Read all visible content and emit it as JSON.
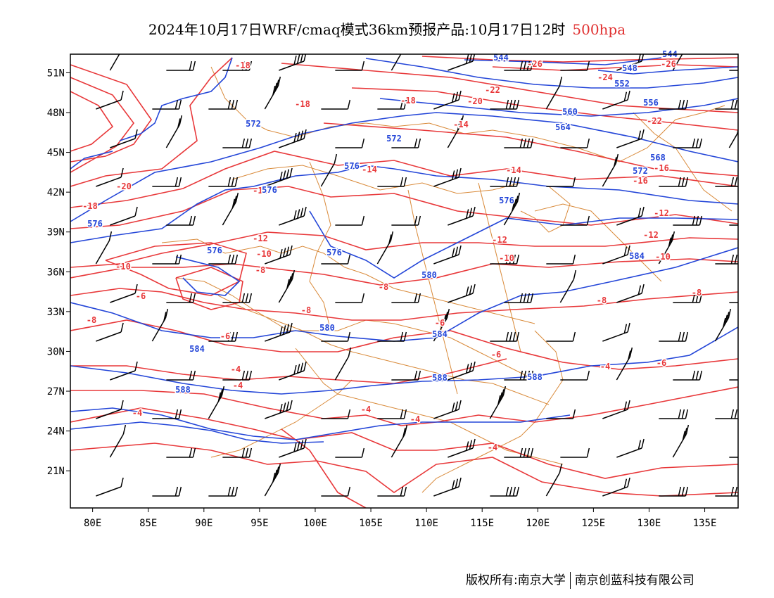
{
  "title": {
    "main": "2024年10月17日WRF/cmaq模式36km预报产品:10月17日12时",
    "level": "500hpa"
  },
  "colors": {
    "temperature": "#e8383a",
    "height": "#2446d8",
    "border": "#d98a3a",
    "wind": "#000000",
    "level_title": "#e03030"
  },
  "map": {
    "lon_range": [
      78,
      138
    ],
    "lat_range": [
      18.2,
      52.4
    ],
    "lon_ticks": [
      "80E",
      "85E",
      "90E",
      "95E",
      "100E",
      "105E",
      "110E",
      "115E",
      "120E",
      "125E",
      "130E",
      "135E"
    ],
    "lat_ticks": [
      "51N",
      "48N",
      "45N",
      "42N",
      "39N",
      "36N",
      "33N",
      "30N",
      "27N",
      "24N",
      "21N"
    ],
    "temperature_labels": [
      "-26",
      "-26",
      "-24",
      "-22",
      "-22",
      "-20",
      "-20",
      "-18",
      "-18",
      "-18",
      "-18",
      "-16",
      "-16",
      "-14",
      "-14",
      "-14",
      "-14",
      "-12",
      "-12",
      "-12",
      "-12",
      "-10",
      "-10",
      "-10",
      "-10",
      "-8",
      "-8",
      "-8",
      "-8",
      "-8",
      "-8",
      "-6",
      "-6",
      "-6",
      "-6",
      "-6",
      "-4",
      "-4",
      "-4",
      "-4",
      "-4",
      "-4",
      "-4"
    ],
    "height_labels": [
      "544",
      "544",
      "548",
      "552",
      "556",
      "560",
      "564",
      "568",
      "572",
      "572",
      "572",
      "576",
      "576",
      "576",
      "576",
      "576",
      "576",
      "580",
      "580",
      "584",
      "584",
      "584",
      "588",
      "588",
      "588"
    ]
  },
  "footer": {
    "left": "版权所有:南京大学",
    "right": "南京创蓝科技有限公司"
  }
}
